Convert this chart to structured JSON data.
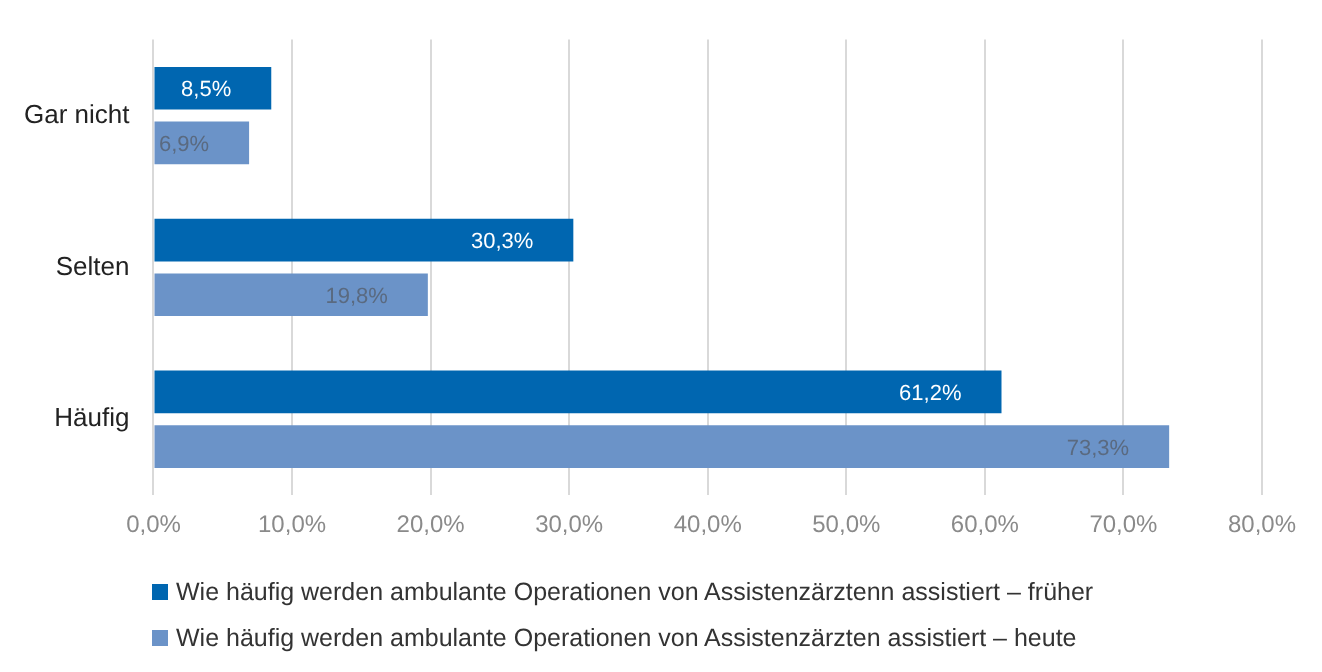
{
  "chart_data": {
    "type": "bar",
    "orientation": "horizontal",
    "categories": [
      "Gar nicht",
      "Selten",
      "Häufig"
    ],
    "series": [
      {
        "name": "Wie häufig werden ambulante Operationen von Assistenzärztenn assistiert – früher",
        "color": "#0066b0",
        "values": [
          8.5,
          30.3,
          61.2
        ],
        "value_labels": [
          "8,5%",
          "30,3%",
          "61,2%"
        ]
      },
      {
        "name": "Wie häufig werden ambulante Operationen von Assistenzärzten assistiert – heute",
        "color": "#6b93c8",
        "values": [
          6.9,
          19.8,
          73.3
        ],
        "value_labels": [
          "6,9%",
          "19,8%",
          "73,3%"
        ]
      }
    ],
    "xlim": [
      0,
      80
    ],
    "xticks": [
      {
        "value": 0,
        "label": "0,0%"
      },
      {
        "value": 10,
        "label": "10,0%"
      },
      {
        "value": 20,
        "label": "20,0%"
      },
      {
        "value": 30,
        "label": "30,0%"
      },
      {
        "value": 40,
        "label": "40,0%"
      },
      {
        "value": 50,
        "label": "50,0%"
      },
      {
        "value": 60,
        "label": "60,0%"
      },
      {
        "value": 70,
        "label": "70,0%"
      },
      {
        "value": 80,
        "label": "80,0%"
      }
    ],
    "grid": "x",
    "legend": "bottom"
  }
}
